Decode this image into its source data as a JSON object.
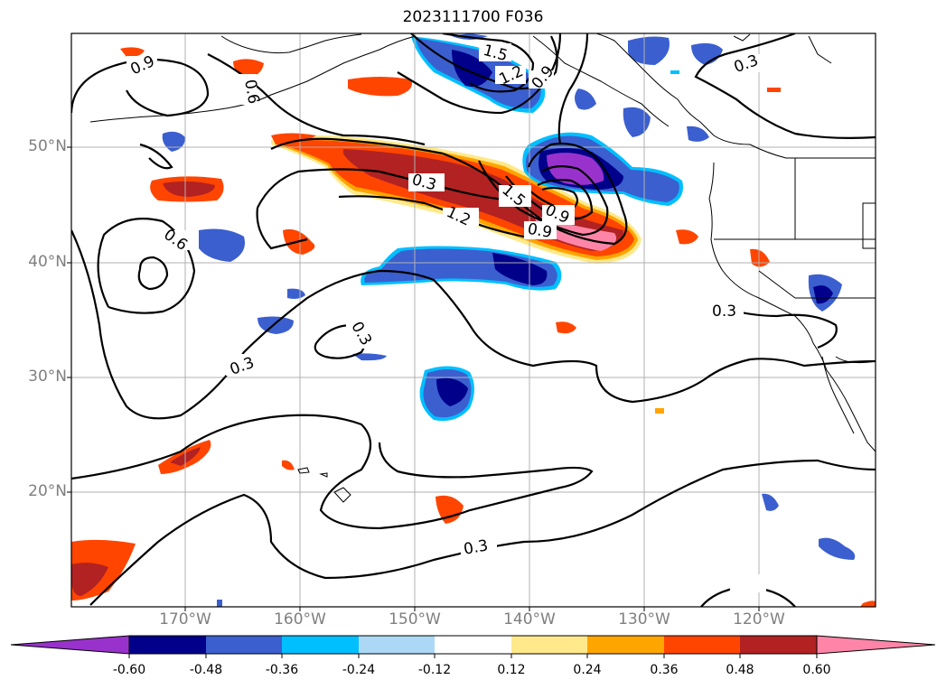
{
  "title": "2023111700 F036",
  "lat_labels": [
    "50°N",
    "40°N",
    "30°N",
    "20°N"
  ],
  "lon_labels": [
    "170°W",
    "160°W",
    "150°W",
    "140°W",
    "130°W",
    "120°W"
  ],
  "contour_labels": [
    "1.5",
    "1.2",
    "0.9",
    "0.3",
    "0.9",
    "0.6",
    "0.3",
    "1.2",
    "1.5",
    "0.9",
    "0.9",
    "0.6",
    "0.3",
    "0.3",
    "0.3",
    "0.3"
  ],
  "colorbar": {
    "ticks": [
      "-0.60",
      "-0.48",
      "-0.36",
      "-0.24",
      "-0.12",
      "0.12",
      "0.24",
      "0.36",
      "0.48",
      "0.60"
    ],
    "colors": [
      "#9932cc",
      "#00008b",
      "#3b5fcf",
      "#00bfff",
      "#add8f5",
      "#ffffff",
      "#ffe98a",
      "#ffa500",
      "#ff4500",
      "#b22222",
      "#ff85a8"
    ]
  }
}
